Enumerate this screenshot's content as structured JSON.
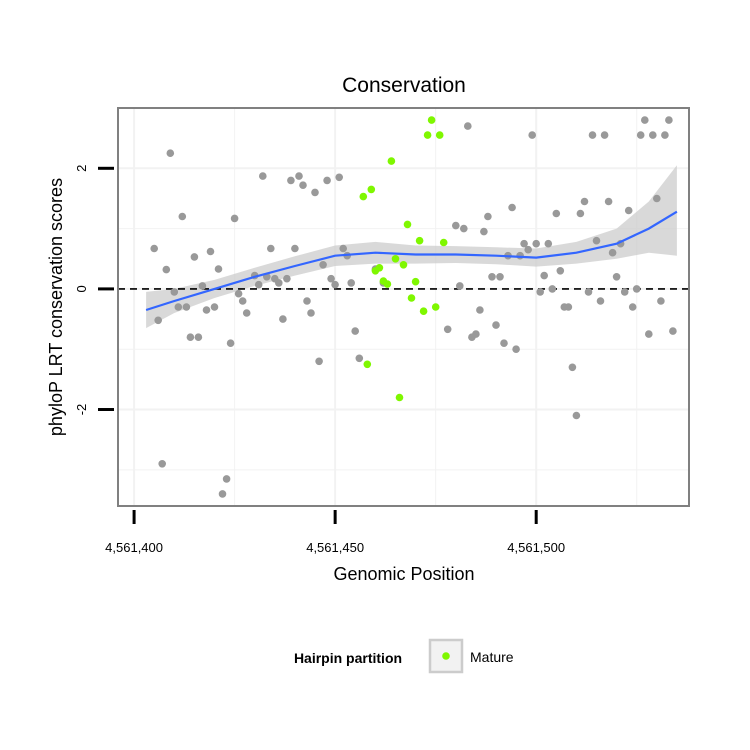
{
  "chart_data": {
    "type": "scatter",
    "title": "Conservation",
    "xlabel": "Genomic Position",
    "ylabel": "phyloP LRT conservation scores",
    "xlim": [
      4561396,
      4561538
    ],
    "ylim": [
      -3.6,
      3.0
    ],
    "x_ticks": [
      4561400,
      4561450,
      4561500
    ],
    "x_tick_labels": [
      "4,561,400",
      "4,561,450",
      "4,561,500"
    ],
    "y_ticks": [
      -2,
      0,
      2
    ],
    "y_tick_labels": [
      "-2",
      "0",
      "2"
    ],
    "hline": 0,
    "grid": true,
    "legend": {
      "title": "Hairpin partition",
      "position": "bottom",
      "entries": [
        "Mature"
      ]
    },
    "colors": {
      "other": "#999999",
      "mature": "#7ff700",
      "smooth": "#3366ff",
      "band": "#cccccc",
      "hline": "#000000",
      "panel_border": "#808080",
      "grid": "#f2f2f2"
    },
    "series": [
      {
        "group": "other",
        "points": [
          [
            4561405,
            0.67
          ],
          [
            4561406,
            -0.52
          ],
          [
            4561407,
            -2.9
          ],
          [
            4561408,
            0.32
          ],
          [
            4561409,
            2.25
          ],
          [
            4561410,
            -0.05
          ],
          [
            4561411,
            -0.3
          ],
          [
            4561412,
            1.2
          ],
          [
            4561413,
            -0.3
          ],
          [
            4561414,
            -0.8
          ],
          [
            4561415,
            0.53
          ],
          [
            4561416,
            -0.8
          ],
          [
            4561417,
            0.05
          ],
          [
            4561418,
            -0.35
          ],
          [
            4561419,
            0.62
          ],
          [
            4561420,
            -0.3
          ],
          [
            4561421,
            0.33
          ],
          [
            4561422,
            -3.4
          ],
          [
            4561423,
            -3.15
          ],
          [
            4561424,
            -0.9
          ],
          [
            4561425,
            1.17
          ],
          [
            4561426,
            -0.08
          ],
          [
            4561427,
            -0.2
          ],
          [
            4561428,
            -0.4
          ],
          [
            4561430,
            0.22
          ],
          [
            4561431,
            0.07
          ],
          [
            4561432,
            1.87
          ],
          [
            4561433,
            0.2
          ],
          [
            4561434,
            0.67
          ],
          [
            4561435,
            0.17
          ],
          [
            4561436,
            0.1
          ],
          [
            4561437,
            -0.5
          ],
          [
            4561438,
            0.17
          ],
          [
            4561439,
            1.8
          ],
          [
            4561440,
            0.67
          ],
          [
            4561441,
            1.87
          ],
          [
            4561442,
            1.72
          ],
          [
            4561443,
            -0.2
          ],
          [
            4561444,
            -0.4
          ],
          [
            4561445,
            1.6
          ],
          [
            4561446,
            -1.2
          ],
          [
            4561447,
            0.4
          ],
          [
            4561448,
            1.8
          ],
          [
            4561449,
            0.17
          ],
          [
            4561450,
            0.07
          ],
          [
            4561451,
            1.85
          ],
          [
            4561452,
            0.67
          ],
          [
            4561453,
            0.55
          ],
          [
            4561454,
            0.1
          ],
          [
            4561455,
            -0.7
          ],
          [
            4561456,
            -1.15
          ],
          [
            4561460,
            0.33
          ],
          [
            4561462,
            0.1
          ],
          [
            4561478,
            -0.67
          ],
          [
            4561480,
            1.05
          ],
          [
            4561481,
            0.05
          ],
          [
            4561482,
            1.0
          ],
          [
            4561483,
            2.7
          ],
          [
            4561484,
            -0.8
          ],
          [
            4561485,
            -0.75
          ],
          [
            4561486,
            -0.35
          ],
          [
            4561487,
            0.95
          ],
          [
            4561488,
            1.2
          ],
          [
            4561489,
            0.2
          ],
          [
            4561490,
            -0.6
          ],
          [
            4561491,
            0.2
          ],
          [
            4561492,
            -0.9
          ],
          [
            4561493,
            0.55
          ],
          [
            4561494,
            1.35
          ],
          [
            4561495,
            -1.0
          ],
          [
            4561496,
            0.55
          ],
          [
            4561497,
            0.75
          ],
          [
            4561498,
            0.65
          ],
          [
            4561499,
            2.55
          ],
          [
            4561500,
            0.75
          ],
          [
            4561501,
            -0.05
          ],
          [
            4561502,
            0.22
          ],
          [
            4561503,
            0.75
          ],
          [
            4561504,
            0.0
          ],
          [
            4561505,
            1.25
          ],
          [
            4561506,
            0.3
          ],
          [
            4561507,
            -0.3
          ],
          [
            4561508,
            -0.3
          ],
          [
            4561509,
            -1.3
          ],
          [
            4561510,
            -2.1
          ],
          [
            4561511,
            1.25
          ],
          [
            4561512,
            1.45
          ],
          [
            4561513,
            -0.05
          ],
          [
            4561514,
            2.55
          ],
          [
            4561515,
            0.8
          ],
          [
            4561516,
            -0.2
          ],
          [
            4561517,
            2.55
          ],
          [
            4561518,
            1.45
          ],
          [
            4561519,
            0.6
          ],
          [
            4561520,
            0.2
          ],
          [
            4561521,
            0.75
          ],
          [
            4561522,
            -0.05
          ],
          [
            4561523,
            1.3
          ],
          [
            4561524,
            -0.3
          ],
          [
            4561525,
            0.0
          ],
          [
            4561526,
            2.55
          ],
          [
            4561527,
            2.8
          ],
          [
            4561528,
            -0.75
          ],
          [
            4561529,
            2.55
          ],
          [
            4561530,
            1.5
          ],
          [
            4561531,
            -0.2
          ],
          [
            4561532,
            2.55
          ],
          [
            4561533,
            2.8
          ],
          [
            4561534,
            -0.7
          ]
        ]
      },
      {
        "group": "mature",
        "name": "Mature",
        "points": [
          [
            4561457,
            1.53
          ],
          [
            4561458,
            -1.25
          ],
          [
            4561459,
            1.65
          ],
          [
            4561460,
            0.3
          ],
          [
            4561461,
            0.35
          ],
          [
            4561462,
            0.13
          ],
          [
            4561463,
            0.08
          ],
          [
            4561464,
            2.12
          ],
          [
            4561465,
            0.5
          ],
          [
            4561466,
            -1.8
          ],
          [
            4561467,
            0.4
          ],
          [
            4561468,
            1.07
          ],
          [
            4561469,
            -0.15
          ],
          [
            4561470,
            0.12
          ],
          [
            4561471,
            0.8
          ],
          [
            4561472,
            -0.37
          ],
          [
            4561473,
            2.55
          ],
          [
            4561474,
            2.8
          ],
          [
            4561475,
            -0.3
          ],
          [
            4561476,
            2.55
          ],
          [
            4561477,
            0.77
          ]
        ]
      }
    ],
    "smooth": {
      "method": "loess",
      "x": [
        4561403,
        4561410,
        4561420,
        4561430,
        4561440,
        4561450,
        4561460,
        4561470,
        4561480,
        4561490,
        4561500,
        4561510,
        4561520,
        4561528,
        4561535
      ],
      "y": [
        -0.35,
        -0.2,
        0.0,
        0.2,
        0.38,
        0.55,
        0.6,
        0.57,
        0.57,
        0.55,
        0.52,
        0.6,
        0.75,
        1.0,
        1.28
      ],
      "lower": [
        -0.65,
        -0.4,
        -0.15,
        0.05,
        0.22,
        0.38,
        0.42,
        0.42,
        0.43,
        0.41,
        0.37,
        0.42,
        0.5,
        0.6,
        0.55
      ],
      "upper": [
        -0.05,
        0.0,
        0.15,
        0.35,
        0.54,
        0.72,
        0.78,
        0.72,
        0.71,
        0.69,
        0.67,
        0.78,
        1.0,
        1.45,
        2.05
      ]
    }
  }
}
